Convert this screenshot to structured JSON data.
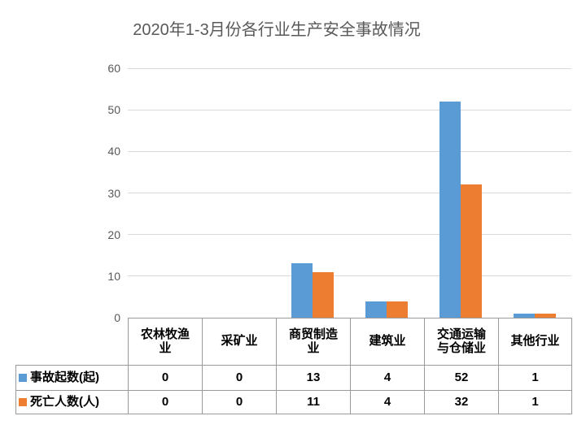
{
  "chart_title": "2020年1-3月份各行业生产安全事故情况",
  "colors": {
    "series1": "#5B9BD5",
    "series2": "#ED7D31",
    "gridline": "#D9D9D9",
    "table_border": "#9A9A9A",
    "axis_text": "#595959",
    "title_text": "#595959",
    "table_text": "#000000",
    "background": "#FFFFFF"
  },
  "chart_data": {
    "type": "bar",
    "title": "2020年1-3月份各行业生产安全事故情况",
    "categories": [
      "农林牧渔业",
      "采矿业",
      "商贸制造业",
      "建筑业",
      "交通运输与仓储业",
      "其他行业"
    ],
    "series": [
      {
        "name": "事故起数(起)",
        "color": "#5B9BD5",
        "values": [
          0,
          0,
          13,
          4,
          52,
          1
        ]
      },
      {
        "name": "死亡人数(人)",
        "color": "#ED7D31",
        "values": [
          0,
          0,
          11,
          4,
          32,
          1
        ]
      }
    ],
    "xlabel": "",
    "ylabel": "",
    "ylim": [
      0,
      60
    ],
    "yticks": [
      0,
      10,
      20,
      30,
      40,
      50,
      60
    ],
    "grid": true,
    "legend_position": "data-table-row-labels",
    "data_table_shown": true
  }
}
